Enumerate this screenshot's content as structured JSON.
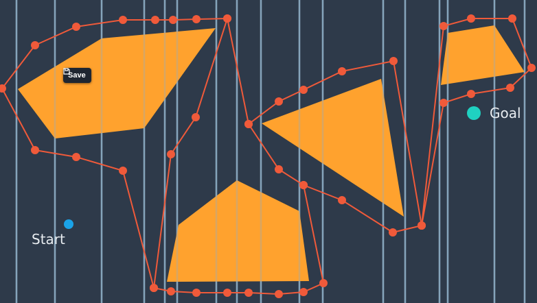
{
  "toolbar": {
    "save_label": "Save",
    "save_icon": "save-icon"
  },
  "labels": {
    "start": "Start",
    "goal": "Goal"
  },
  "colors": {
    "background": "#2e3a4a",
    "grid_line": "#8fb0c8",
    "obstacle": "#ffa22e",
    "path": "#f05a3a",
    "start_marker": "#1aa3e8",
    "goal_marker": "#1fd1c1"
  }
}
